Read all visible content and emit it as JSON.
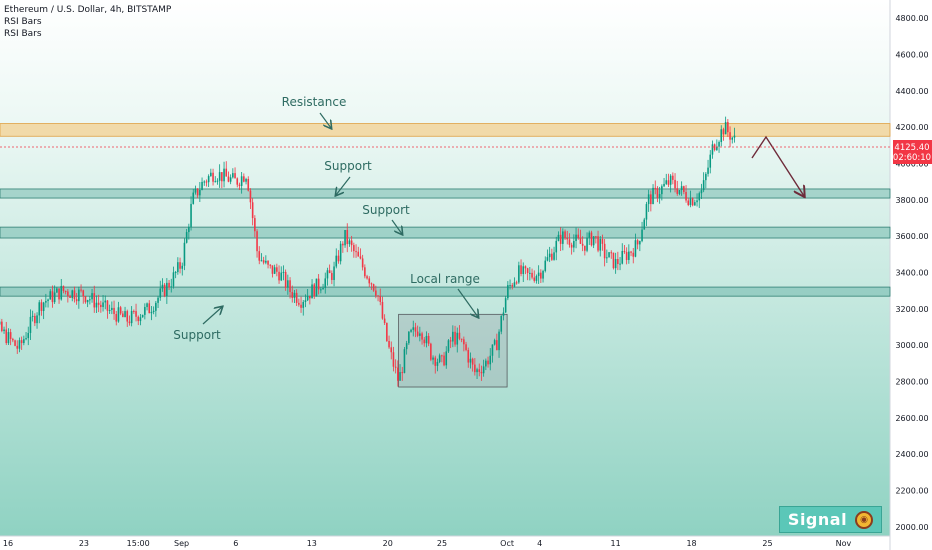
{
  "header": {
    "title": "Ethereum / U.S. Dollar, 4h, BITSTAMP",
    "indicators": [
      "RSI Bars",
      "RSI Bars"
    ]
  },
  "price_axis": {
    "ticks": [
      "4800.00",
      "4600.00",
      "4400.00",
      "4200.00",
      "4000.00",
      "3800.00",
      "3600.00",
      "3400.00",
      "3200.00",
      "3000.00",
      "2800.00",
      "2600.00",
      "2400.00",
      "2200.00",
      "2000.00"
    ],
    "last_price": "4125.40",
    "countdown": "02:60:10"
  },
  "time_axis": {
    "ticks": [
      "16",
      "23",
      "15:00",
      "Sep",
      "6",
      "13",
      "20",
      "25",
      "Oct",
      "4",
      "11",
      "18",
      "25",
      "Nov"
    ]
  },
  "annotations": {
    "resistance": "Resistance",
    "support_1": "Support",
    "support_2": "Support",
    "support_3": "Support",
    "local_range": "Local range"
  },
  "branding": {
    "text": "Signal",
    "logo_icon": "signal-logo-icon"
  },
  "colors": {
    "candle_up": "#089981",
    "candle_down": "#f23645",
    "resistance_zone": "#f5c26b",
    "support_zone": "#3f9e8f",
    "label_bg": "#f23645"
  },
  "chart_data": {
    "type": "candlestick",
    "symbol": "Ethereum / U.S. Dollar",
    "interval": "4h",
    "exchange": "BITSTAMP",
    "ylim": [
      2000,
      4900
    ],
    "last_price": 4125.4,
    "price_path": [
      {
        "date": "Aug 13",
        "price": 3300
      },
      {
        "date": "Aug 15",
        "price": 3100
      },
      {
        "date": "Aug 17",
        "price": 2980
      },
      {
        "date": "Aug 19",
        "price": 3230
      },
      {
        "date": "Aug 21",
        "price": 3300
      },
      {
        "date": "Aug 23",
        "price": 3280
      },
      {
        "date": "Aug 25",
        "price": 3200
      },
      {
        "date": "Aug 27",
        "price": 3140
      },
      {
        "date": "Aug 29",
        "price": 3200
      },
      {
        "date": "Aug 31",
        "price": 3350
      },
      {
        "date": "Sep 1",
        "price": 3450
      },
      {
        "date": "Sep 2",
        "price": 3800
      },
      {
        "date": "Sep 3",
        "price": 3900
      },
      {
        "date": "Sep 4",
        "price": 3950
      },
      {
        "date": "Sep 6",
        "price": 3900
      },
      {
        "date": "Sep 7",
        "price": 3950
      },
      {
        "date": "Sep 8",
        "price": 3500
      },
      {
        "date": "Sep 9",
        "price": 3420
      },
      {
        "date": "Sep 10",
        "price": 3400
      },
      {
        "date": "Sep 11",
        "price": 3300
      },
      {
        "date": "Sep 12",
        "price": 3250
      },
      {
        "date": "Sep 13",
        "price": 3300
      },
      {
        "date": "Sep 14",
        "price": 3350
      },
      {
        "date": "Sep 15",
        "price": 3400
      },
      {
        "date": "Sep 16",
        "price": 3600
      },
      {
        "date": "Sep 17",
        "price": 3500
      },
      {
        "date": "Sep 18",
        "price": 3400
      },
      {
        "date": "Sep 19",
        "price": 3300
      },
      {
        "date": "Sep 20",
        "price": 3000
      },
      {
        "date": "Sep 21",
        "price": 2800
      },
      {
        "date": "Sep 22",
        "price": 3050
      },
      {
        "date": "Sep 23",
        "price": 3100
      },
      {
        "date": "Sep 24",
        "price": 2950
      },
      {
        "date": "Sep 25",
        "price": 2900
      },
      {
        "date": "Sep 26",
        "price": 3050
      },
      {
        "date": "Sep 27",
        "price": 3000
      },
      {
        "date": "Sep 28",
        "price": 2850
      },
      {
        "date": "Sep 29",
        "price": 2900
      },
      {
        "date": "Sep 30",
        "price": 3000
      },
      {
        "date": "Oct 1",
        "price": 3300
      },
      {
        "date": "Oct 2",
        "price": 3400
      },
      {
        "date": "Oct 3",
        "price": 3380
      },
      {
        "date": "Oct 4",
        "price": 3400
      },
      {
        "date": "Oct 5",
        "price": 3500
      },
      {
        "date": "Oct 6",
        "price": 3600
      },
      {
        "date": "Oct 7",
        "price": 3580
      },
      {
        "date": "Oct 8",
        "price": 3550
      },
      {
        "date": "Oct 9",
        "price": 3600
      },
      {
        "date": "Oct 10",
        "price": 3500
      },
      {
        "date": "Oct 11",
        "price": 3450
      },
      {
        "date": "Oct 12",
        "price": 3500
      },
      {
        "date": "Oct 13",
        "price": 3550
      },
      {
        "date": "Oct 14",
        "price": 3800
      },
      {
        "date": "Oct 15",
        "price": 3850
      },
      {
        "date": "Oct 16",
        "price": 3900
      },
      {
        "date": "Oct 17",
        "price": 3850
      },
      {
        "date": "Oct 18",
        "price": 3800
      },
      {
        "date": "Oct 19",
        "price": 3850
      },
      {
        "date": "Oct 20",
        "price": 4100
      },
      {
        "date": "Oct 21",
        "price": 4200
      },
      {
        "date": "Oct 22",
        "price": 4125.4
      }
    ],
    "zones": [
      {
        "name": "resistance",
        "low": 4150,
        "high": 4220
      },
      {
        "name": "support",
        "low": 3810,
        "high": 3860
      },
      {
        "name": "support",
        "low": 3590,
        "high": 3650
      },
      {
        "name": "support",
        "low": 3270,
        "high": 3320
      }
    ],
    "local_range_box": {
      "start": "Sep 21",
      "end": "Oct 1",
      "low": 2770,
      "high": 3170
    },
    "projection": [
      {
        "date": "Oct 22",
        "price": 4180
      },
      {
        "date": "Oct 24",
        "price": 3850
      }
    ],
    "y_ticks": [
      4800,
      4600,
      4400,
      4200,
      4000,
      3800,
      3600,
      3400,
      3200,
      3000,
      2800,
      2600,
      2400,
      2200,
      2000
    ],
    "x_ticks": [
      "16",
      "23",
      "15:00",
      "Sep",
      "6",
      "13",
      "20",
      "25",
      "Oct",
      "4",
      "11",
      "18",
      "25",
      "Nov"
    ]
  }
}
